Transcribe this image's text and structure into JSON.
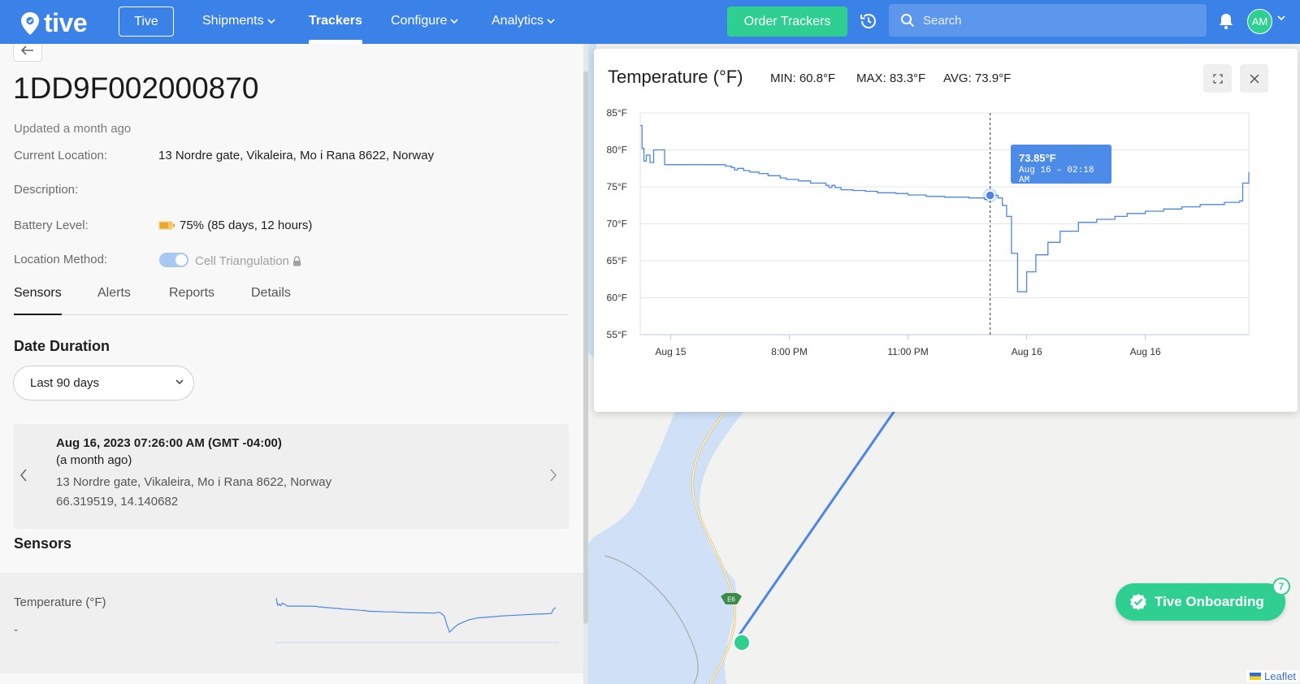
{
  "nav": {
    "logo_text": "tive",
    "org_button": "Tive",
    "items": [
      "Shipments",
      "Trackers",
      "Configure",
      "Analytics"
    ],
    "order_button": "Order Trackers",
    "search_placeholder": "Search",
    "avatar_initials": "AM",
    "brand_color": "#3b82e8",
    "accent_color": "#2ecf91"
  },
  "tracker": {
    "id": "1DD9F002000870",
    "updated": "Updated a month ago",
    "current_location_label": "Current Location:",
    "current_location": "13 Nordre gate, Vikaleira, Mo i Rana 8622, Norway",
    "description_label": "Description:",
    "battery_label": "Battery Level:",
    "battery_value": "75% (85 days, 12 hours)",
    "battery_level": 0.75,
    "location_method_label": "Location Method:",
    "location_method": "Cell Triangulation"
  },
  "tabs": [
    "Sensors",
    "Alerts",
    "Reports",
    "Details"
  ],
  "date_duration": {
    "title": "Date Duration",
    "selected": "Last 90 days"
  },
  "location_card": {
    "timestamp": "Aug 16, 2023 07:26:00 AM (GMT -04:00)",
    "relative": "(a month ago)",
    "address": "13 Nordre gate, Vikaleira, Mo i Rana 8622, Norway",
    "coordinates": "66.319519, 14.140682"
  },
  "sensors": {
    "title": "Sensors",
    "temperature_name": "Temperature (°F)",
    "temperature_value": "-"
  },
  "chart_panel": {
    "title": "Temperature (°F)",
    "min": "MIN: 60.8°F",
    "max": "MAX: 83.3°F",
    "avg": "AVG: 73.9°F",
    "tooltip_value": "73.85°F",
    "tooltip_time": "Aug 16 – 02:18 AM"
  },
  "chart_data": {
    "type": "line",
    "ylabel": "",
    "xlabel": "",
    "ylim": [
      55,
      85
    ],
    "yticks": [
      "55°F",
      "60°F",
      "65°F",
      "70°F",
      "75°F",
      "80°F",
      "85°F"
    ],
    "xticks": [
      "Aug 15",
      "8:00 PM",
      "11:00 PM",
      "Aug 16",
      "Aug 16"
    ],
    "series": [
      {
        "x": [
          0,
          0.3,
          0.6,
          1,
          1.6,
          2.2,
          4,
          6,
          8,
          9,
          10,
          12,
          14,
          15,
          15.5,
          16,
          17,
          18,
          19.5,
          21,
          22,
          23,
          24,
          26,
          28,
          30.5,
          31,
          31.5,
          32,
          33,
          35,
          37,
          39,
          42,
          44,
          47,
          50,
          54,
          56.6,
          57.5,
          58.2,
          58.8,
          59.5,
          60.2,
          61,
          62,
          63.5,
          65,
          67,
          69,
          72,
          75,
          78,
          80,
          83,
          86,
          89,
          92,
          96,
          98.5,
          99,
          100
        ],
        "values": [
          83.3,
          80.2,
          78.5,
          79.3,
          78.3,
          80,
          78,
          78,
          78,
          78,
          78,
          78,
          77.8,
          77.6,
          77.3,
          77.5,
          77.2,
          77,
          76.8,
          76.5,
          76.5,
          76.2,
          76,
          75.8,
          75.5,
          75.2,
          74.9,
          75.2,
          74.9,
          74.6,
          74.5,
          74.4,
          74.2,
          74.1,
          73.9,
          73.7,
          73.6,
          73.5,
          73.3,
          73.85,
          73.85,
          73.5,
          72.5,
          71,
          66,
          60.8,
          63.5,
          65.8,
          67.5,
          69,
          70.2,
          70.6,
          71,
          71.4,
          71.7,
          72,
          72.3,
          72.6,
          72.9,
          73.1,
          75.5,
          77
        ]
      }
    ],
    "highlight": {
      "x": 57.5,
      "y": 73.85
    },
    "grid": true,
    "color": "#4a86e8"
  }
}
